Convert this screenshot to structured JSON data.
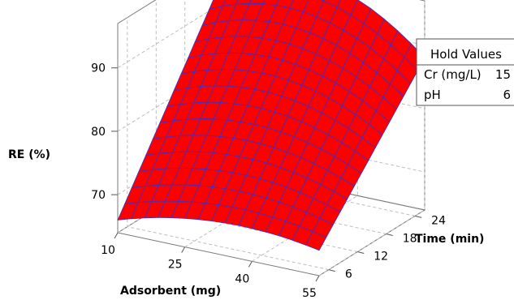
{
  "chart_data": {
    "type": "surface",
    "x_axis": {
      "label": "Adsorbent (mg)",
      "ticks": [
        10,
        25,
        40,
        55
      ],
      "range": [
        10,
        55
      ]
    },
    "y_axis": {
      "label": "Time (min)",
      "ticks": [
        6,
        12,
        18,
        24
      ],
      "range": [
        4,
        26
      ]
    },
    "z_axis": {
      "label": "RE (%)",
      "ticks": [
        70,
        80,
        90
      ],
      "range": [
        64,
        97
      ]
    },
    "surface": {
      "x_values": [
        10,
        55
      ],
      "y_values": [
        4,
        26
      ],
      "z_corners": {
        "x10_y4": 66,
        "x55_y4": 68,
        "x10_y26": 94,
        "x55_y26": 88
      },
      "peak_along_x": 28,
      "grid_divisions": [
        15,
        15
      ],
      "fill_color": "#ff0000",
      "mesh_color": "#3333cc"
    },
    "hold_values": {
      "title": "Hold Values",
      "rows": [
        {
          "name": "Cr (mg/L)",
          "value": "15"
        },
        {
          "name": "pH",
          "value": "6"
        }
      ]
    }
  }
}
